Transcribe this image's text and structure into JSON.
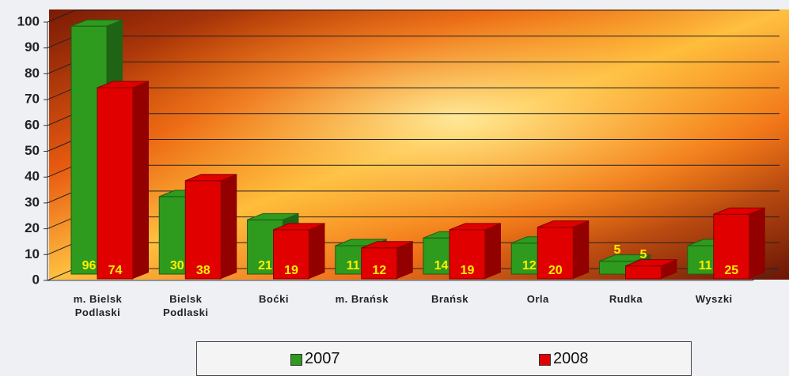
{
  "chart_data": {
    "type": "bar3d",
    "categories": [
      "m. Bielsk\nPodlaski",
      "Bielsk\nPodlaski",
      "Boćki",
      "m. Brańsk",
      "Brańsk",
      "Orla",
      "Rudka",
      "Wyszki"
    ],
    "series": [
      {
        "name": "2007",
        "color": "#2e9a1e",
        "values": [
          96,
          30,
          21,
          11,
          14,
          12,
          5,
          11
        ]
      },
      {
        "name": "2008",
        "color": "#e00000",
        "values": [
          74,
          38,
          19,
          12,
          19,
          20,
          5,
          25
        ]
      }
    ],
    "ylim": [
      0,
      100
    ],
    "yticks": [
      0,
      10,
      20,
      30,
      40,
      50,
      60,
      70,
      80,
      90,
      100
    ],
    "grid": true
  }
}
